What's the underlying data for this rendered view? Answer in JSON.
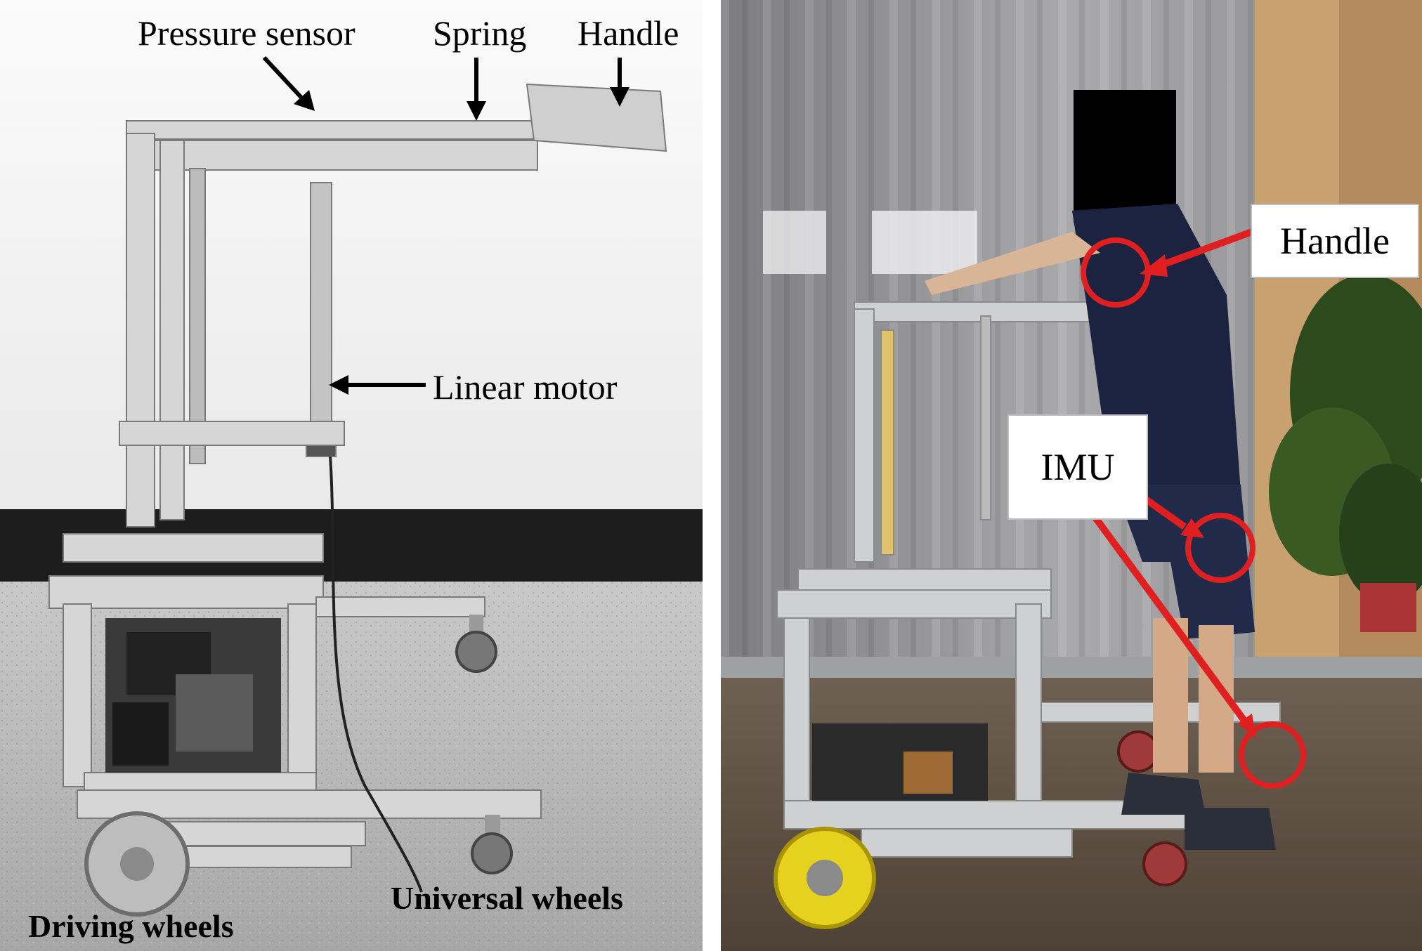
{
  "left_labels": {
    "pressure_sensor": "Pressure sensor",
    "spring": "Spring",
    "handle": "Handle",
    "linear_motor": "Linear motor",
    "universal_wheels": "Universal wheels",
    "driving_wheels": "Driving wheels"
  },
  "right_labels": {
    "handle": "Handle",
    "imu": "IMU"
  },
  "colors": {
    "annotation_red": "#e02020",
    "frame_aluminum": "#c8c8c8",
    "floor_gray": "#b4b4b4",
    "wall_white": "#f2f2f2",
    "shirt_navy": "#1c2340",
    "wheel_yellow": "#e6d21e"
  }
}
